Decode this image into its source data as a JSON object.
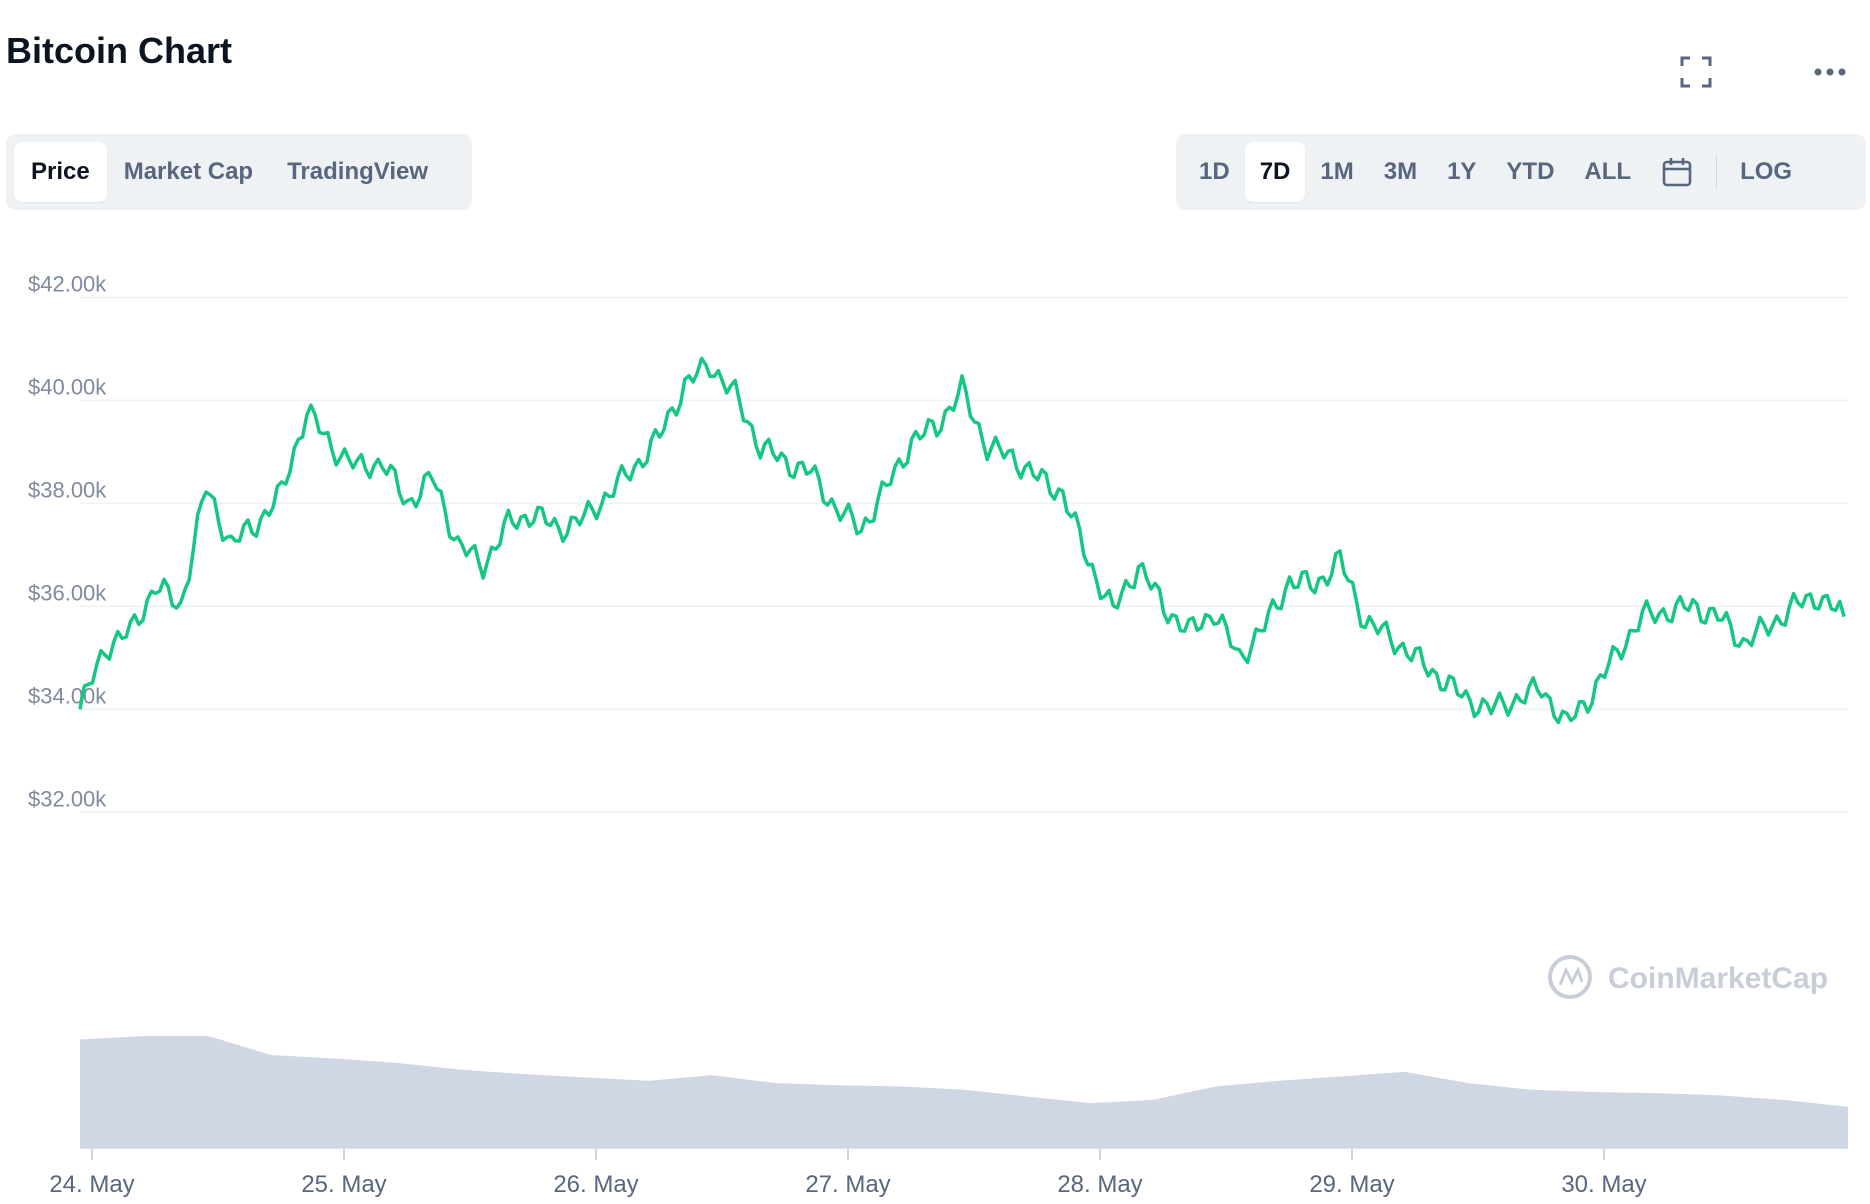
{
  "header": {
    "title": "Bitcoin Chart"
  },
  "view_tabs": [
    {
      "label": "Price",
      "active": true
    },
    {
      "label": "Market Cap",
      "active": false
    },
    {
      "label": "TradingView",
      "active": false
    }
  ],
  "range_tabs": [
    {
      "label": "1D",
      "active": false
    },
    {
      "label": "7D",
      "active": true
    },
    {
      "label": "1M",
      "active": false
    },
    {
      "label": "3M",
      "active": false
    },
    {
      "label": "1Y",
      "active": false
    },
    {
      "label": "YTD",
      "active": false
    },
    {
      "label": "ALL",
      "active": false
    }
  ],
  "log_label": "LOG",
  "icons": {
    "fullscreen": "fullscreen-icon",
    "more": "more-icon",
    "calendar": "calendar-icon"
  },
  "watermark": "CoinMarketCap",
  "colors": {
    "line": "#16c784",
    "volume": "#cfd6e4",
    "grid": "#eff2f5",
    "text": "#58667e"
  },
  "chart_data": {
    "type": "line",
    "yticks": [
      32000,
      34000,
      36000,
      38000,
      40000,
      42000
    ],
    "ytick_labels": [
      "$32.00k",
      "$34.00k",
      "$36.00k",
      "$38.00k",
      "$40.00k",
      "$42.00k"
    ],
    "xtick_labels": [
      "24. May",
      "25. May",
      "26. May",
      "27. May",
      "28. May",
      "29. May",
      "30. May"
    ],
    "ylim": [
      31500,
      42300
    ],
    "grid": true,
    "series": [
      {
        "kind": "price",
        "x": [
          0,
          0.1,
          0.2,
          0.3,
          0.4,
          0.5,
          0.6,
          0.7,
          0.8,
          0.9,
          1.0,
          1.1,
          1.2,
          1.3,
          1.4,
          1.5,
          1.6,
          1.7,
          1.8,
          1.9,
          2.0,
          2.1,
          2.2,
          2.3,
          2.4,
          2.5,
          2.6,
          2.7,
          2.8,
          2.9,
          3.0,
          3.1,
          3.2,
          3.3,
          3.4,
          3.5,
          3.6,
          3.7,
          3.8,
          3.9,
          4.0,
          4.1,
          4.2,
          4.3,
          4.4,
          4.5,
          4.6,
          4.7,
          4.8,
          4.9,
          5.0,
          5.1,
          5.2,
          5.3,
          5.4,
          5.5,
          5.6,
          5.7,
          5.8,
          5.9,
          6.0,
          6.1,
          6.2,
          6.3,
          6.4,
          6.5,
          6.6,
          6.7,
          6.8,
          6.9,
          7.0
        ],
        "y": [
          34000,
          35200,
          35500,
          36400,
          36000,
          38300,
          37200,
          37600,
          38200,
          39800,
          39100,
          38700,
          38800,
          38000,
          38500,
          37200,
          36800,
          37600,
          37800,
          37500,
          37700,
          38200,
          38700,
          39300,
          40300,
          40700,
          40100,
          39100,
          38800,
          38600,
          37900,
          37500,
          38300,
          39200,
          39500,
          40200,
          39100,
          38900,
          38500,
          38200,
          36900,
          35900,
          36800,
          36000,
          35500,
          35900,
          35000,
          35600,
          36500,
          36400,
          36900,
          35700,
          35400,
          35000,
          34600,
          34200,
          34000,
          34200,
          34400,
          33700,
          34300,
          35100,
          35800,
          35900,
          36000,
          35800,
          35300,
          35600,
          36000,
          36200,
          35800
        ]
      },
      {
        "kind": "volume",
        "x": [
          0,
          0.25,
          0.5,
          0.75,
          1.0,
          1.25,
          1.5,
          1.75,
          2.0,
          2.25,
          2.5,
          2.75,
          3.0,
          3.25,
          3.5,
          3.75,
          4.0,
          4.25,
          4.5,
          4.75,
          5.0,
          5.25,
          5.5,
          5.75,
          6.0,
          6.25,
          6.5,
          6.75,
          7.0
        ],
        "y": [
          0.97,
          1.0,
          1.0,
          0.83,
          0.8,
          0.76,
          0.7,
          0.66,
          0.63,
          0.6,
          0.65,
          0.58,
          0.56,
          0.55,
          0.52,
          0.46,
          0.4,
          0.43,
          0.55,
          0.6,
          0.64,
          0.68,
          0.58,
          0.52,
          0.5,
          0.49,
          0.47,
          0.43,
          0.37
        ]
      }
    ]
  }
}
